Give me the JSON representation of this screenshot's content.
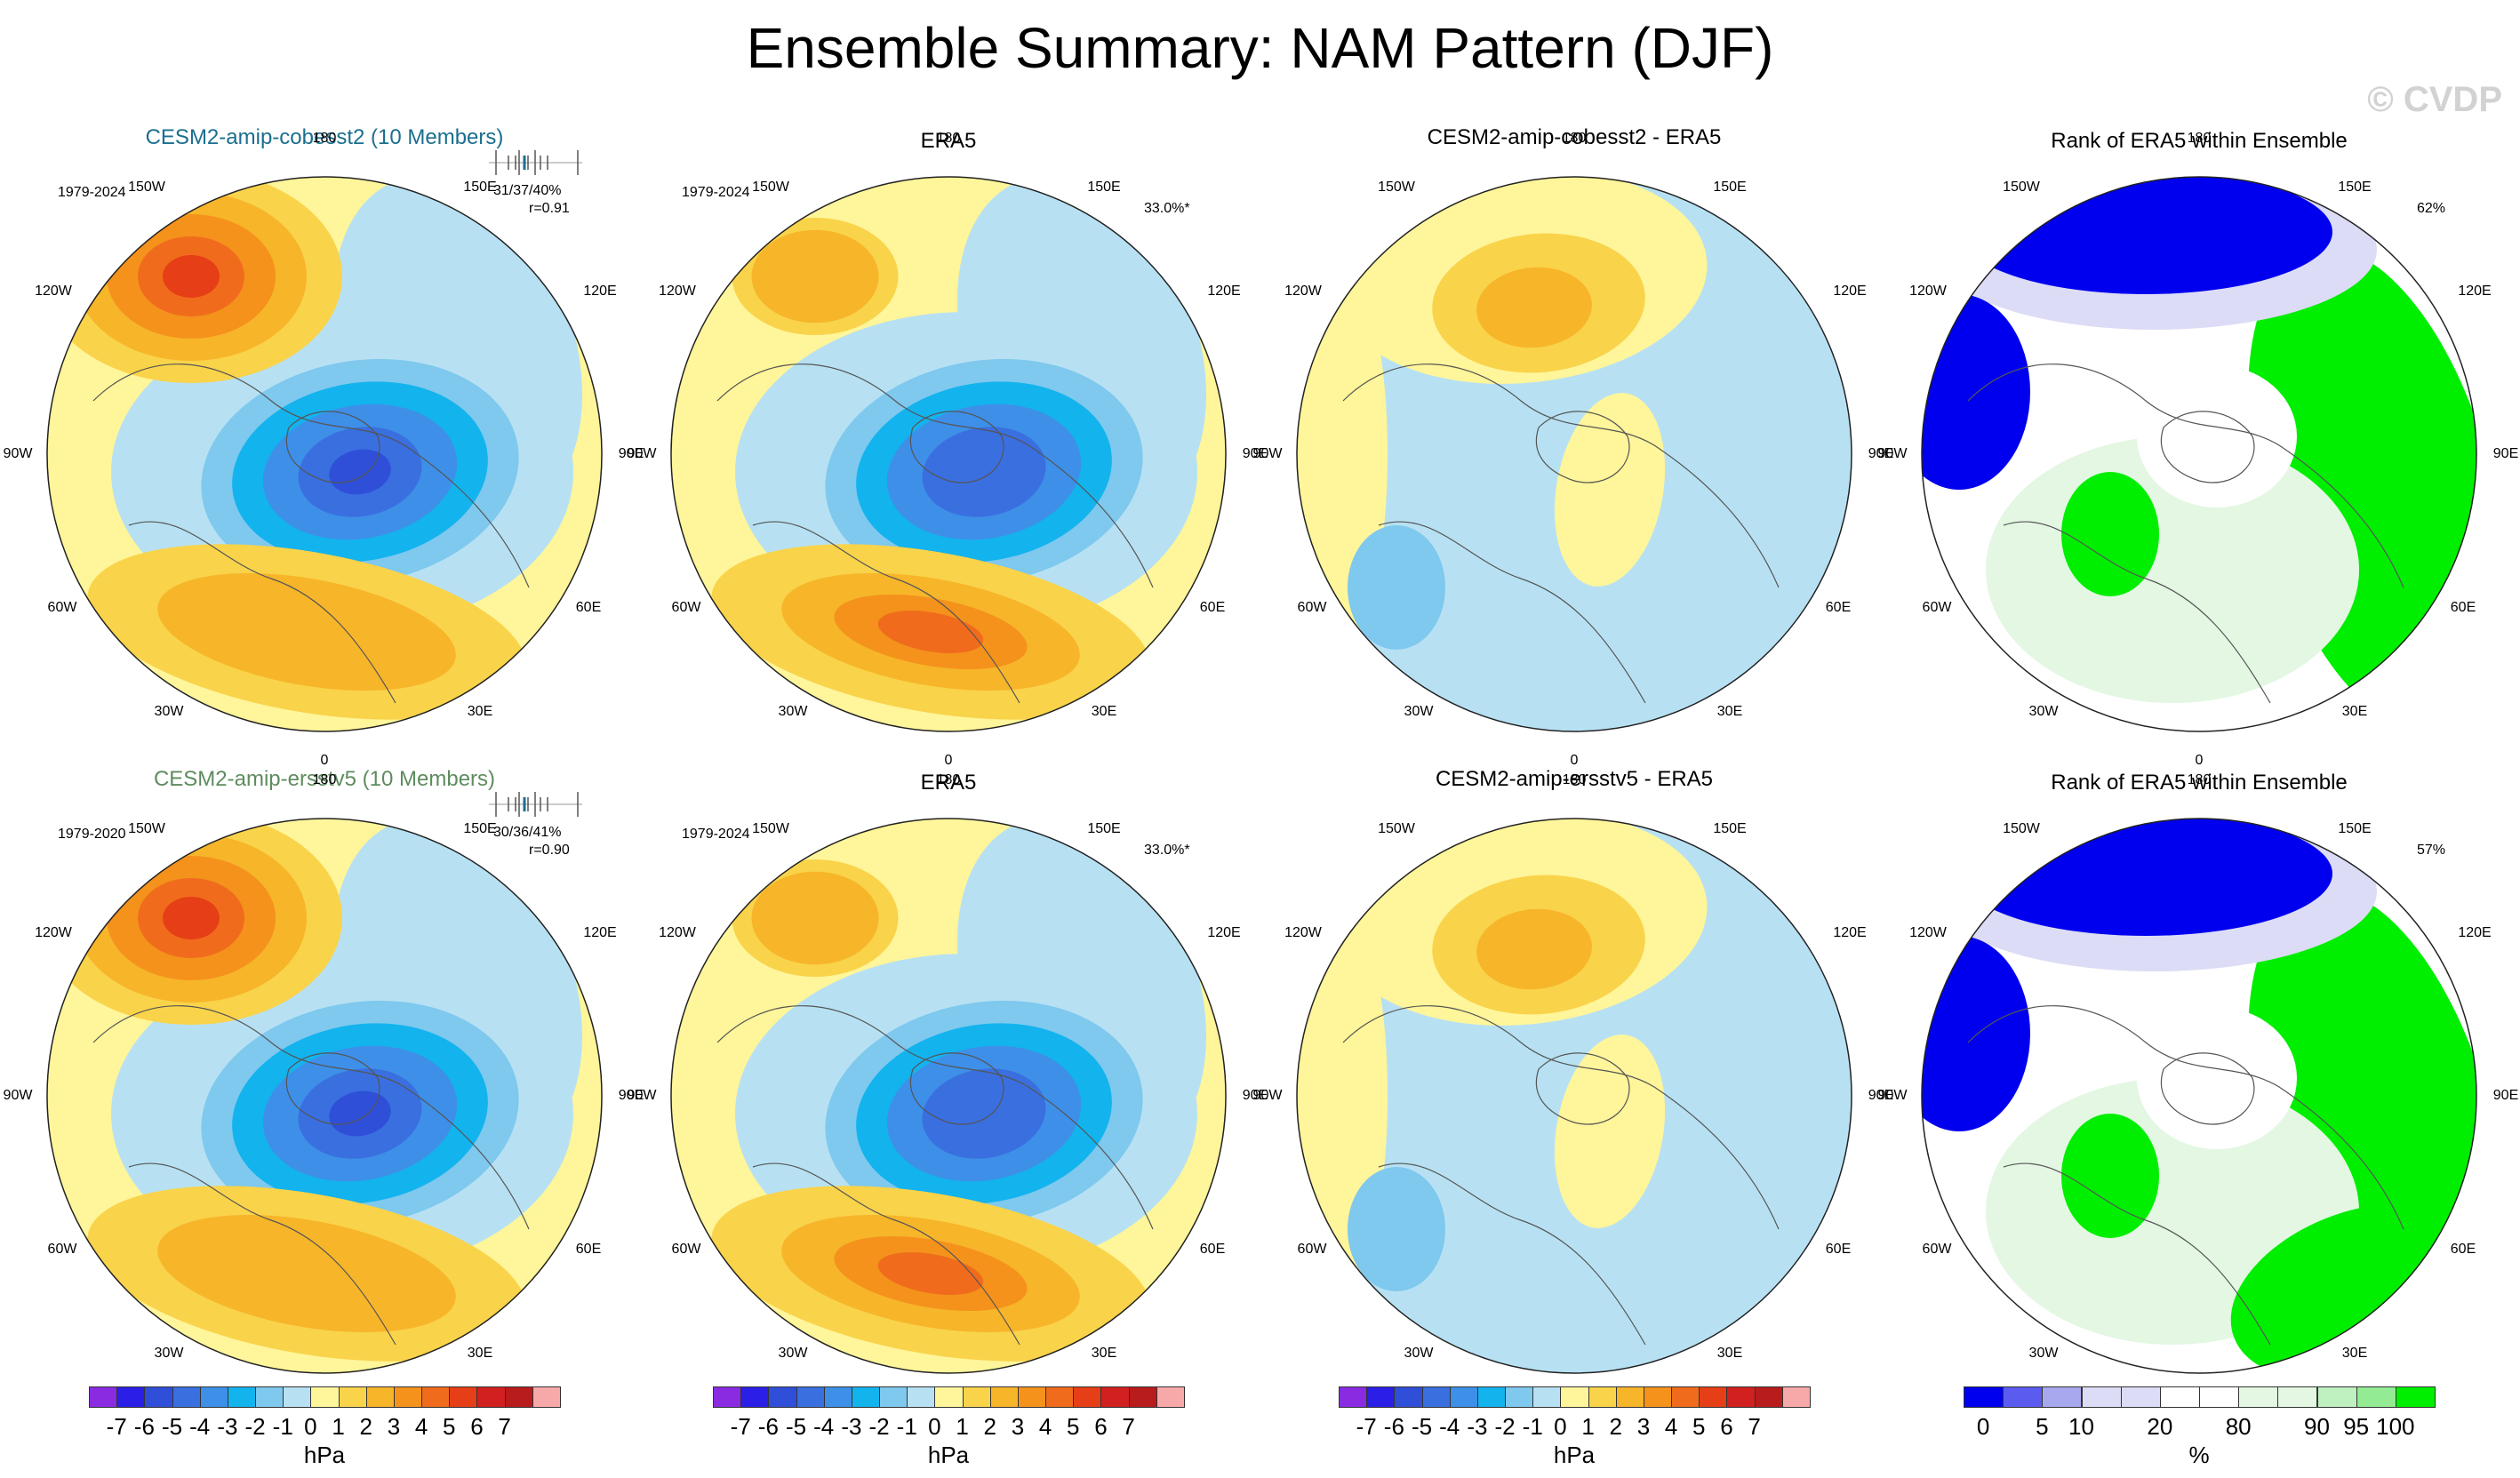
{
  "title": "Ensemble Summary: NAM Pattern (DJF)",
  "watermark": "© CVDP",
  "lon_labels": {
    "l180": "180",
    "l150w": "150W",
    "l150e": "150E",
    "l120w": "120W",
    "l120e": "120E",
    "l90w": "90W",
    "l90e": "90E",
    "l60w": "60W",
    "l60e": "60E",
    "l30w": "30W",
    "l30e": "30E",
    "l0": "0"
  },
  "rows": [
    {
      "model_title": "CESM2-amip-cobesst2 (10 Members)",
      "model_title_color": "#1b6f8f",
      "model_years": "1979-2024",
      "member_stats": "31/37/40%",
      "pattern_corr": "r=0.91",
      "obs_title": "ERA5",
      "obs_years": "1979-2024",
      "obs_pct": "33.0%*",
      "diff_title": "CESM2-amip-cobesst2 - ERA5",
      "rank_title": "Rank of ERA5 within Ensemble",
      "rank_pct": "62%"
    },
    {
      "model_title": "CESM2-amip-ersstv5 (10 Members)",
      "model_title_color": "#5e8c5e",
      "model_years": "1979-2020",
      "member_stats": "30/36/41%",
      "pattern_corr": "r=0.90",
      "obs_title": "ERA5",
      "obs_years": "1979-2024",
      "obs_pct": "33.0%*",
      "diff_title": "CESM2-amip-ersstv5 - ERA5",
      "rank_title": "Rank of ERA5 within Ensemble",
      "rank_pct": "57%"
    }
  ],
  "hpa_colorbar": {
    "unit": "hPa",
    "colors": [
      "#8a2be2",
      "#2b1ee6",
      "#2f4fd8",
      "#3a6fe0",
      "#3e8fe8",
      "#13b3ee",
      "#7fc8ee",
      "#b7e1f3",
      "#fff59a",
      "#f9d34a",
      "#f7b52a",
      "#f4921c",
      "#f06c1c",
      "#e63e16",
      "#d21f1f",
      "#b81c1c",
      "#f7a9a9"
    ],
    "labels": [
      "-7",
      "-6",
      "-5",
      "-4",
      "-3",
      "-2",
      "-1",
      "0",
      "1",
      "2",
      "3",
      "4",
      "5",
      "6",
      "7"
    ]
  },
  "rank_colorbar": {
    "unit": "%",
    "colors": [
      "#0000ee",
      "#5b5bf0",
      "#a8a8ee",
      "#dcdcf6",
      "#dcdcf6",
      "#ffffff",
      "#ffffff",
      "#e3f7e3",
      "#e3f7e3",
      "#bff0bf",
      "#93ec93",
      "#00ee00"
    ],
    "labels": [
      "0",
      "5",
      "10",
      "20",
      "80",
      "90",
      "95",
      "100"
    ]
  },
  "colors": {
    "pos1": "#fff59a",
    "pos2": "#f9d34a",
    "pos3": "#f7b52a",
    "pos4": "#f4921c",
    "pos5": "#f06c1c",
    "pos6": "#e63e16",
    "neg1": "#b7e1f3",
    "neg2": "#7fc8ee",
    "neg3": "#13b3ee",
    "neg4": "#3e8fe8",
    "neg5": "#3a6fe0",
    "neg6": "#2f4fd8",
    "rank_lo": "#0000ee",
    "rank_mlo": "#dcdcf6",
    "rank_mid": "#ffffff",
    "rank_mhi": "#e3f7e3",
    "rank_hi": "#00ee00"
  }
}
